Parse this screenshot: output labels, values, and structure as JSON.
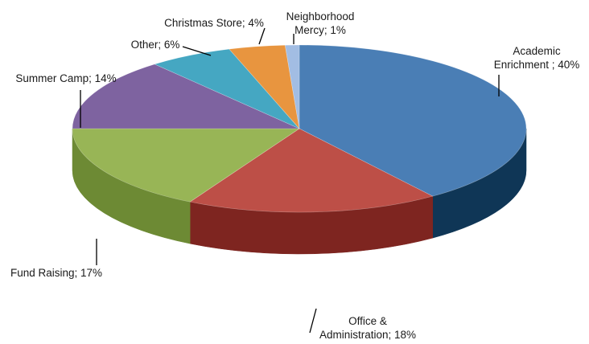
{
  "chart_data": {
    "type": "pie",
    "style": "3d",
    "title": "",
    "slices": [
      {
        "label": "Academic Enrichment ; 40%",
        "label_lines": [
          "Academic",
          "Enrichment ; 40%"
        ],
        "value": 40,
        "color": "#4a7eb5",
        "side_color": "#0f3656"
      },
      {
        "label": "Office & Administration; 18%",
        "label_lines": [
          "Office &",
          "Administration; 18%"
        ],
        "value": 18,
        "color": "#bd4f47",
        "side_color": "#7e2520"
      },
      {
        "label": "Fund Raising; 17%",
        "label_lines": [
          "Fund Raising; 17%"
        ],
        "value": 17,
        "color": "#98b556",
        "side_color": "#6d8a34"
      },
      {
        "label": "Summer Camp; 14%",
        "label_lines": [
          "Summer Camp; 14%"
        ],
        "value": 14,
        "color": "#7e63a0",
        "side_color": "#53406e"
      },
      {
        "label": "Other; 6%",
        "label_lines": [
          "Other; 6%"
        ],
        "value": 6,
        "color": "#45a7c2",
        "side_color": "#2b7a90"
      },
      {
        "label": "Christmas Store; 4%",
        "label_lines": [
          "Christmas Store; 4%"
        ],
        "value": 4,
        "color": "#e8953f",
        "side_color": "#b26c25"
      },
      {
        "label": "Neighborhood Mercy; 1%",
        "label_lines": [
          "Neighborhood",
          "Mercy; 1%"
        ],
        "value": 1,
        "color": "#a2bde3",
        "side_color": "#7b95bd"
      }
    ],
    "legend": "none",
    "data_labels": "outside-with-leader-lines"
  }
}
